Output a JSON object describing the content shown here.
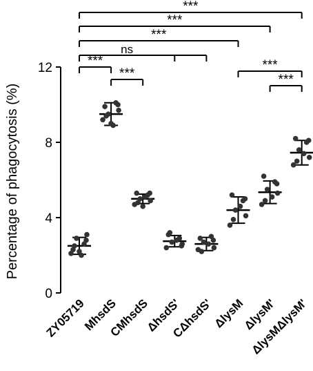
{
  "chart_data": {
    "type": "scatter",
    "ylabel": "Percentage of phagocytosis (%)",
    "ylim": [
      0,
      12
    ],
    "yticks": [
      0,
      4,
      8,
      12
    ],
    "categories": [
      "ZY05719",
      "MhsdS",
      "CMhsdS",
      "ΔhsdS'",
      "CΔhsdS'",
      "ΔlysM",
      "ΔlysM'",
      "ΔlysMΔlysM'"
    ],
    "groups": [
      {
        "name": "ZY05719",
        "mean": 2.5,
        "sd": 0.45,
        "points": [
          2.3,
          2.6,
          2.9,
          3.1,
          2.1,
          2.0,
          2.5,
          2.8,
          2.2
        ]
      },
      {
        "name": "MhsdS",
        "mean": 9.5,
        "sd": 0.6,
        "points": [
          9.9,
          10.1,
          9.5,
          9.7,
          9.2,
          8.9,
          9.4,
          10.0,
          9.0
        ]
      },
      {
        "name": "CMhsdS",
        "mean": 5.0,
        "sd": 0.25,
        "points": [
          5.3,
          5.2,
          5.0,
          4.9,
          4.7,
          5.1,
          4.8,
          5.3,
          4.6
        ]
      },
      {
        "name": "ΔhsdS'",
        "mean": 2.75,
        "sd": 0.3,
        "points": [
          3.1,
          2.9,
          2.7,
          2.6,
          2.4,
          2.8,
          3.2,
          2.5
        ]
      },
      {
        "name": "CΔhsdS'",
        "mean": 2.6,
        "sd": 0.35,
        "points": [
          2.9,
          3.0,
          2.7,
          2.4,
          2.3,
          2.6,
          2.2,
          2.8
        ]
      },
      {
        "name": "ΔlysM",
        "mean": 4.4,
        "sd": 0.7,
        "points": [
          5.2,
          4.9,
          4.4,
          4.1,
          3.6,
          4.6,
          3.9,
          5.0
        ]
      },
      {
        "name": "ΔlysM'",
        "mean": 5.35,
        "sd": 0.6,
        "points": [
          6.2,
          5.9,
          5.5,
          5.3,
          4.7,
          5.1,
          4.9,
          5.8
        ]
      },
      {
        "name": "ΔlysMΔlysM'",
        "mean": 7.45,
        "sd": 0.65,
        "points": [
          8.2,
          8.0,
          7.6,
          7.2,
          6.8,
          7.4,
          7.0,
          8.1
        ]
      }
    ],
    "significance": [
      {
        "from": 0,
        "to": 7,
        "label": "***"
      },
      {
        "from": 0,
        "to": 6,
        "label": "***"
      },
      {
        "from": 0,
        "to": 5,
        "label": "***"
      },
      {
        "from": 0,
        "to": [
          3,
          4
        ],
        "label": "ns"
      },
      {
        "from": 0,
        "to": 1,
        "label": "***"
      },
      {
        "from": 1,
        "to": 2,
        "label": "***"
      },
      {
        "from": 5,
        "to": 7,
        "label": "***"
      },
      {
        "from": 6,
        "to": 7,
        "label": "***"
      }
    ],
    "grid": false,
    "colors": {
      "points": "#333333",
      "lines": "#000000"
    }
  }
}
